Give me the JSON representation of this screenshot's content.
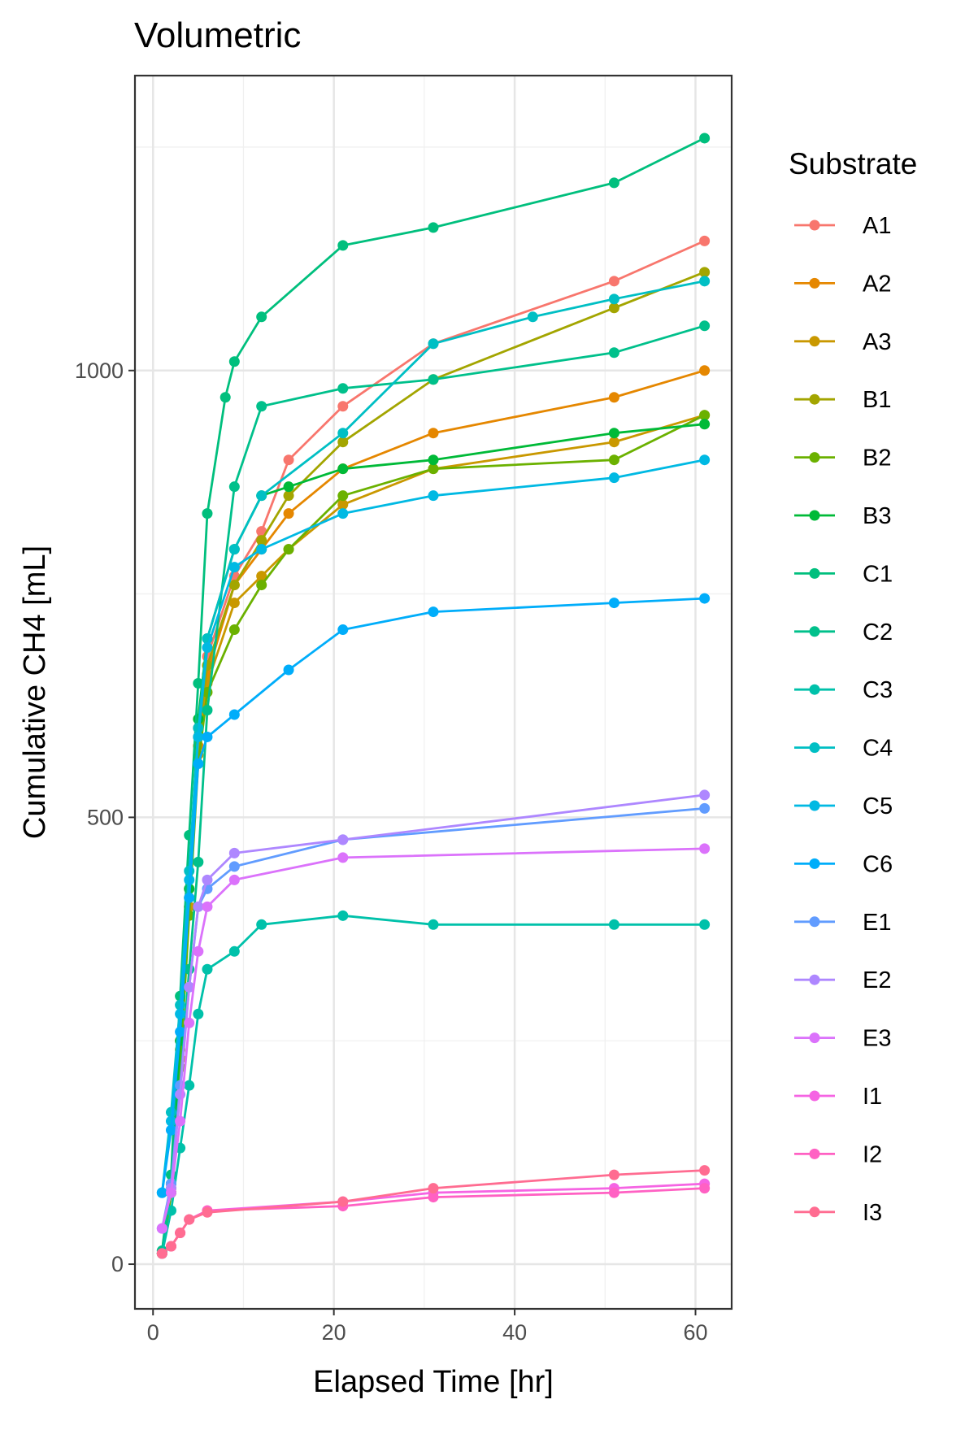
{
  "chart_data": {
    "type": "line",
    "title": "Volumetric",
    "xlabel": "Elapsed Time [hr]",
    "ylabel": "Cumulative CH4 [mL]",
    "xlim": [
      -2,
      64
    ],
    "ylim": [
      -50,
      1330
    ],
    "x_ticks": [
      0,
      20,
      40,
      60
    ],
    "y_ticks": [
      0,
      500,
      1000
    ],
    "grid": true,
    "legend_title": "Substrate",
    "legend_position": "right",
    "series": [
      {
        "name": "A1",
        "color": "#F8766D",
        "x": [
          1,
          2,
          3,
          4,
          5,
          6,
          9,
          12,
          15,
          21,
          31,
          51,
          61
        ],
        "y": [
          12,
          90,
          250,
          420,
          600,
          680,
          770,
          820,
          900,
          960,
          1030,
          1100,
          1145
        ]
      },
      {
        "name": "A2",
        "color": "#E58700",
        "x": [
          1,
          2,
          3,
          4,
          5,
          6,
          9,
          12,
          15,
          21,
          31,
          51,
          61
        ],
        "y": [
          12,
          80,
          230,
          400,
          580,
          660,
          760,
          800,
          840,
          890,
          930,
          970,
          1000
        ]
      },
      {
        "name": "A3",
        "color": "#C99800",
        "x": [
          1,
          2,
          3,
          4,
          5,
          6,
          9,
          12,
          15,
          21,
          31,
          51,
          61
        ],
        "y": [
          12,
          80,
          230,
          400,
          570,
          650,
          740,
          770,
          800,
          850,
          890,
          920,
          950
        ]
      },
      {
        "name": "B1",
        "color": "#A3A500",
        "x": [
          1,
          2,
          3,
          4,
          5,
          6,
          9,
          12,
          15,
          21,
          31,
          51,
          61
        ],
        "y": [
          12,
          85,
          240,
          410,
          590,
          670,
          760,
          810,
          860,
          920,
          990,
          1070,
          1110
        ]
      },
      {
        "name": "B2",
        "color": "#6BB100",
        "x": [
          1,
          2,
          3,
          4,
          5,
          6,
          9,
          12,
          15,
          21,
          31,
          51,
          61
        ],
        "y": [
          12,
          80,
          220,
          390,
          560,
          640,
          710,
          760,
          800,
          860,
          890,
          900,
          950
        ]
      },
      {
        "name": "B3",
        "color": "#00BA38",
        "x": [
          1,
          2,
          3,
          4,
          5,
          6,
          9,
          12,
          15,
          21,
          31,
          51,
          61
        ],
        "y": [
          12,
          90,
          250,
          420,
          610,
          700,
          800,
          860,
          870,
          890,
          900,
          930,
          940
        ]
      },
      {
        "name": "C1",
        "color": "#00BF7D",
        "x": [
          1,
          2,
          3,
          4,
          5,
          6,
          8,
          9,
          12,
          21,
          31,
          51,
          61
        ],
        "y": [
          15,
          100,
          300,
          480,
          650,
          840,
          970,
          1010,
          1060,
          1140,
          1160,
          1210,
          1260
        ]
      },
      {
        "name": "C2",
        "color": "#00C08B",
        "x": [
          1,
          2,
          3,
          4,
          5,
          6,
          9,
          12,
          21,
          31,
          51,
          61
        ],
        "y": [
          15,
          90,
          200,
          330,
          450,
          620,
          870,
          960,
          980,
          990,
          1020,
          1050
        ]
      },
      {
        "name": "C3",
        "color": "#00C1AA",
        "x": [
          1,
          2,
          3,
          4,
          5,
          6,
          9,
          12,
          21,
          31,
          51,
          61
        ],
        "y": [
          12,
          60,
          130,
          200,
          280,
          330,
          350,
          380,
          390,
          380,
          380,
          380
        ]
      },
      {
        "name": "C4",
        "color": "#00BFC4",
        "x": [
          1,
          2,
          3,
          4,
          5,
          6,
          9,
          12,
          21,
          31,
          42,
          51,
          61
        ],
        "y": [
          80,
          170,
          290,
          440,
          600,
          700,
          800,
          860,
          930,
          1030,
          1060,
          1080,
          1100
        ]
      },
      {
        "name": "C5",
        "color": "#00B9E3",
        "x": [
          1,
          2,
          3,
          4,
          5,
          6,
          9,
          12,
          21,
          31,
          51,
          61
        ],
        "y": [
          80,
          160,
          280,
          430,
          590,
          690,
          780,
          800,
          840,
          860,
          880,
          900
        ]
      },
      {
        "name": "C6",
        "color": "#00ADFA",
        "x": [
          1,
          2,
          3,
          4,
          5,
          6,
          9,
          15,
          21,
          31,
          51,
          61
        ],
        "y": [
          80,
          150,
          260,
          410,
          560,
          590,
          615,
          665,
          710,
          730,
          740,
          745
        ]
      },
      {
        "name": "E1",
        "color": "#619CFF",
        "x": [
          1,
          2,
          3,
          4,
          5,
          6,
          9,
          21,
          61
        ],
        "y": [
          40,
          90,
          200,
          310,
          400,
          420,
          445,
          475,
          510
        ]
      },
      {
        "name": "E2",
        "color": "#AE87FF",
        "x": [
          1,
          2,
          3,
          4,
          5,
          6,
          9,
          21,
          61
        ],
        "y": [
          40,
          85,
          190,
          310,
          400,
          430,
          460,
          475,
          525
        ]
      },
      {
        "name": "E3",
        "color": "#DB72FB",
        "x": [
          1,
          2,
          3,
          4,
          5,
          6,
          9,
          21,
          61
        ],
        "y": [
          40,
          80,
          160,
          270,
          350,
          400,
          430,
          455,
          465
        ]
      },
      {
        "name": "I1",
        "color": "#F564E3",
        "x": [
          1,
          2,
          3,
          4,
          6,
          21,
          31,
          51,
          61
        ],
        "y": [
          12,
          20,
          35,
          50,
          60,
          70,
          80,
          85,
          90
        ]
      },
      {
        "name": "I2",
        "color": "#FF61C3",
        "x": [
          1,
          2,
          3,
          4,
          6,
          21,
          31,
          51,
          61
        ],
        "y": [
          12,
          20,
          35,
          50,
          60,
          65,
          75,
          80,
          85
        ]
      },
      {
        "name": "I3",
        "color": "#FF6C91",
        "x": [
          1,
          2,
          3,
          4,
          6,
          21,
          31,
          51,
          61
        ],
        "y": [
          12,
          20,
          35,
          50,
          58,
          70,
          85,
          100,
          105
        ]
      }
    ]
  }
}
